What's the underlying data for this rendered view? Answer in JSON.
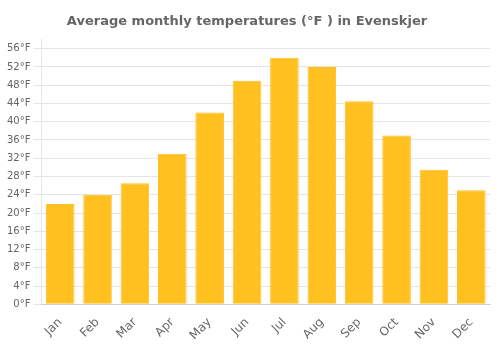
{
  "chart_data": {
    "type": "bar",
    "title": "Average monthly temperatures (°F ) in Evenskjer",
    "categories": [
      "Jan",
      "Feb",
      "Mar",
      "Apr",
      "May",
      "Jun",
      "Jul",
      "Aug",
      "Sep",
      "Oct",
      "Nov",
      "Dec"
    ],
    "values": [
      22,
      24,
      26.5,
      33,
      42,
      49,
      54,
      52,
      44.5,
      37,
      29.5,
      25
    ],
    "color": "#FFC020",
    "ylim": [
      0,
      58
    ],
    "yticks": [
      {
        "value": 0,
        "label": "0°F"
      },
      {
        "value": 4,
        "label": "4°F"
      },
      {
        "value": 8,
        "label": "8°F"
      },
      {
        "value": 12,
        "label": "12°F"
      },
      {
        "value": 16,
        "label": "16°F"
      },
      {
        "value": 20,
        "label": "20°F"
      },
      {
        "value": 24,
        "label": "24°F"
      },
      {
        "value": 28,
        "label": "28°F"
      },
      {
        "value": 32,
        "label": "32°F"
      },
      {
        "value": 36,
        "label": "36°F"
      },
      {
        "value": 40,
        "label": "40°F"
      },
      {
        "value": 44,
        "label": "44°F"
      },
      {
        "value": 48,
        "label": "48°F"
      },
      {
        "value": 52,
        "label": "52°F"
      },
      {
        "value": 56,
        "label": "56°F"
      }
    ],
    "grid": true
  }
}
